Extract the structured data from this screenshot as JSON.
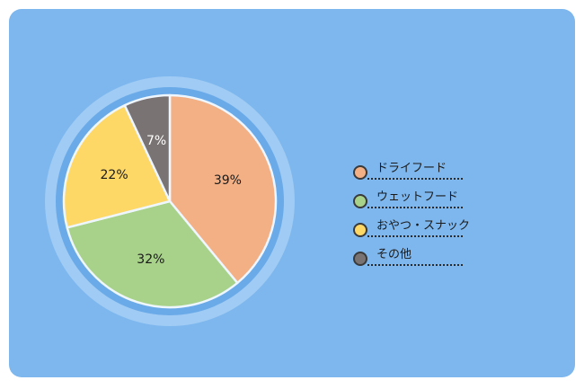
{
  "colors": {
    "background": "#7db7ee",
    "ring_outer": "#9fcbf4",
    "ring_inner": "#6aaae8",
    "slice_border": "#eef6ff",
    "label_text": "#1a1a1a",
    "label_text_dark_slice": "#ffffff"
  },
  "chart_data": {
    "type": "pie",
    "title": "",
    "legend_position": "right",
    "slices": [
      {
        "label": "ドライフード",
        "value": 39,
        "display": "39%",
        "color": "#f3b085"
      },
      {
        "label": "ウェットフード",
        "value": 32,
        "display": "32%",
        "color": "#a8d28a"
      },
      {
        "label": "おやつ・スナック",
        "value": 22,
        "display": "22%",
        "color": "#fdd867"
      },
      {
        "label": "その他",
        "value": 7,
        "display": "7%",
        "color": "#7a7373"
      }
    ]
  }
}
